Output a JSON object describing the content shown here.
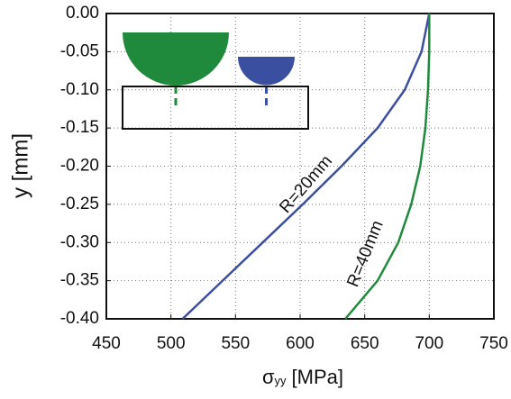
{
  "chart_data": {
    "type": "line",
    "x_label": {
      "symbol": "σ",
      "subscript": "yy",
      "unit": "[MPa]"
    },
    "y_label": "y  [mm]",
    "y": [
      0,
      -0.05,
      -0.1,
      -0.15,
      -0.2,
      -0.25,
      -0.3,
      -0.35,
      -0.4
    ],
    "series": [
      {
        "name": "R=20mm",
        "color": "#3a4fa0",
        "values": [
          700,
          694,
          681,
          660,
          632,
          602,
          571,
          540,
          509
        ]
      },
      {
        "name": "R=40mm",
        "color": "#1f8a3c",
        "values": [
          700,
          700,
          699,
          697,
          693,
          686,
          676,
          660,
          635
        ]
      }
    ],
    "xlim": [
      450,
      750
    ],
    "xticks": [
      450,
      500,
      550,
      600,
      650,
      700,
      750
    ],
    "ylim": [
      -0.4,
      0
    ],
    "yticks": [
      {
        "value": 0,
        "label": "0.00"
      },
      {
        "value": -0.05,
        "label": "-0.05"
      },
      {
        "value": -0.1,
        "label": "-0.10"
      },
      {
        "value": -0.15,
        "label": "-0.15"
      },
      {
        "value": -0.2,
        "label": "-0.20"
      },
      {
        "value": -0.25,
        "label": "-0.25"
      },
      {
        "value": -0.3,
        "label": "-0.30"
      },
      {
        "value": -0.35,
        "label": "-0.35"
      },
      {
        "value": -0.4,
        "label": "-0.40"
      }
    ],
    "grid": true
  }
}
